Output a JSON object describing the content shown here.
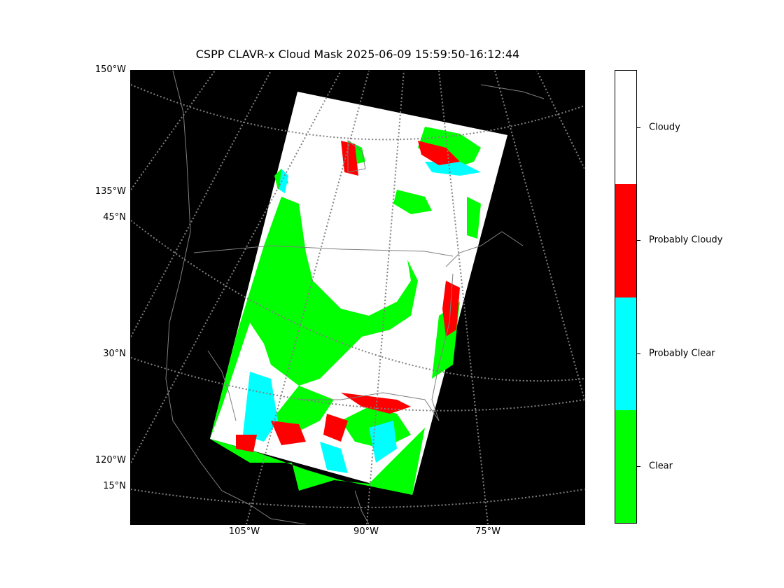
{
  "title": "CSPP CLAVR-x Cloud Mask 2025-06-09 15:59:50-16:12:44",
  "map": {
    "background": "#000000",
    "graticule_color": "#808080",
    "coastline_color": "#808080",
    "lat_labels": [
      "150°W",
      "135°W",
      "45°N",
      "30°N",
      "120°W",
      "15°N"
    ],
    "lon_labels": [
      "105°W",
      "90°W",
      "75°W"
    ]
  },
  "colorbar": {
    "categories": [
      {
        "label": "Cloudy",
        "color": "#ffffff"
      },
      {
        "label": "Probably Cloudy",
        "color": "#ff0000"
      },
      {
        "label": "Probably Clear",
        "color": "#00ffff"
      },
      {
        "label": "Clear",
        "color": "#00ff00"
      }
    ]
  }
}
